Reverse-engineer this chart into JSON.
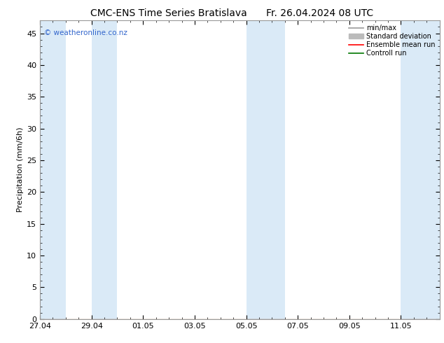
{
  "title_left": "CMC-ENS Time Series Bratislava",
  "title_right": "Fr. 26.04.2024 08 UTC",
  "ylabel": "Precipitation (mm/6h)",
  "watermark": "© weatheronline.co.nz",
  "watermark_color": "#3366cc",
  "ylim": [
    0,
    47
  ],
  "yticks": [
    0,
    5,
    10,
    15,
    20,
    25,
    30,
    35,
    40,
    45
  ],
  "bg_color": "#ffffff",
  "plot_bg_color": "#ffffff",
  "band_color": "#daeaf7",
  "title_fontsize": 10,
  "ylabel_fontsize": 8,
  "tick_fontsize": 8,
  "legend_labels": [
    "min/max",
    "Standard deviation",
    "Ensemble mean run",
    "Controll run"
  ],
  "legend_line_colors": [
    "#999999",
    "#bbbbbb",
    "#ff0000",
    "#007700"
  ],
  "shaded_bands": [
    [
      0.0,
      1.0
    ],
    [
      2.0,
      3.0
    ],
    [
      8.0,
      9.5
    ],
    [
      14.0,
      15.5
    ]
  ],
  "x_tick_labels": [
    "27.04",
    "29.04",
    "01.05",
    "03.05",
    "05.05",
    "07.05",
    "09.05",
    "11.05"
  ],
  "x_tick_positions": [
    0,
    2,
    4,
    6,
    8,
    10,
    12,
    14
  ],
  "x_min": 0,
  "x_max": 15.5,
  "border_color": "#999999"
}
